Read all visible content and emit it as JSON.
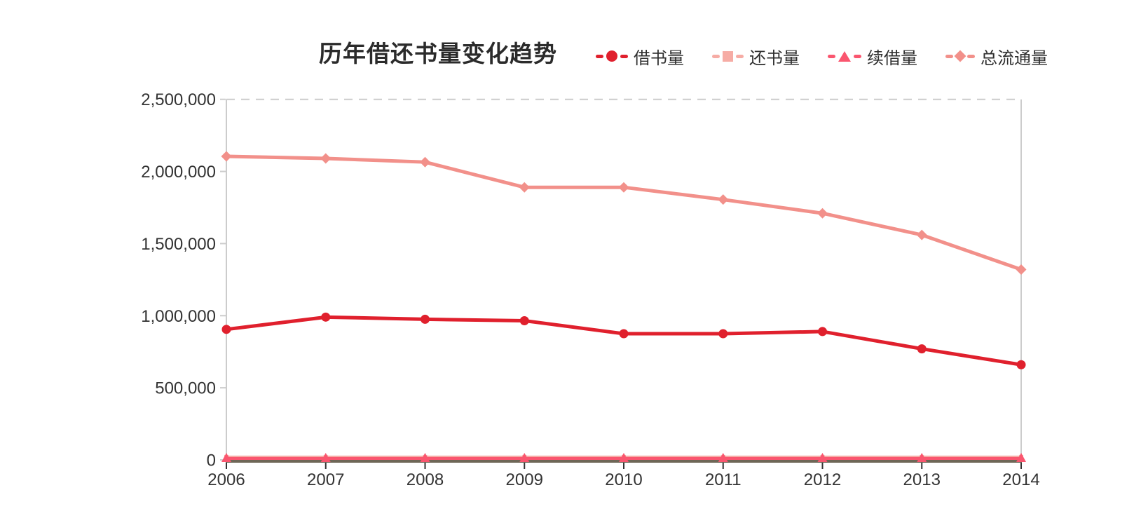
{
  "page": {
    "background": "#ffffff"
  },
  "chart_data": {
    "type": "line",
    "title": "历年借还书量变化趋势",
    "categories": [
      "2006",
      "2007",
      "2008",
      "2009",
      "2010",
      "2011",
      "2012",
      "2013",
      "2014"
    ],
    "series": [
      {
        "key": "borrow",
        "name": "借书量",
        "marker": "circle",
        "color": "#e0202d",
        "values": [
          905000,
          990000,
          975000,
          965000,
          875000,
          875000,
          890000,
          770000,
          660000
        ]
      },
      {
        "key": "return",
        "name": "还书量",
        "marker": "square",
        "color": "#f6aca5",
        "values": [
          20000,
          20000,
          20000,
          20000,
          20000,
          20000,
          20000,
          20000,
          20000
        ]
      },
      {
        "key": "renew",
        "name": "续借量",
        "marker": "triangle",
        "color": "#fa566f",
        "values": [
          10000,
          10000,
          10000,
          10000,
          10000,
          10000,
          10000,
          10000,
          10000
        ]
      },
      {
        "key": "total",
        "name": "总流通量",
        "marker": "diamond",
        "color": "#f2908a",
        "values": [
          2105000,
          2090000,
          2065000,
          1890000,
          1890000,
          1805000,
          1710000,
          1560000,
          1320000
        ]
      }
    ],
    "ylim": [
      0,
      2500000
    ],
    "ytick_step": 500000,
    "ytick_labels": [
      "0",
      "500,000",
      "1,000,000",
      "1,500,000",
      "2,000,000",
      "2,500,000"
    ],
    "xlabel": "",
    "ylabel": "",
    "legend_position": "top-right",
    "grid": "dashed line at y-max only",
    "colors": {
      "axis_light": "#cccccc",
      "axis_dark": "#6e6757",
      "x_tick": "#333333",
      "label_text": "#333333",
      "title_text": "#2b2b2b"
    },
    "draw_order": [
      "return",
      "renew",
      "total",
      "borrow"
    ]
  }
}
